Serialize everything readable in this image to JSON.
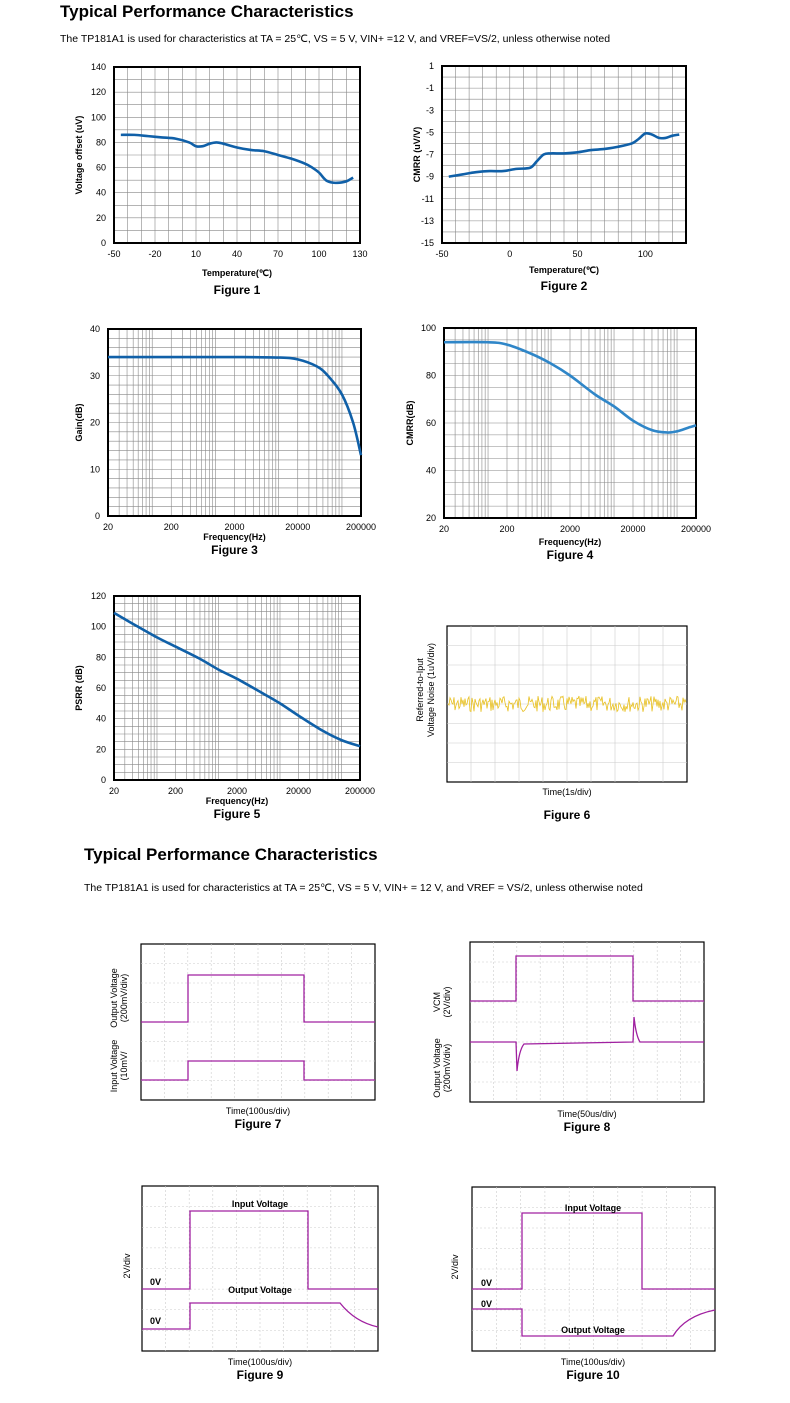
{
  "page": {
    "section1_title": "Typical Performance Characteristics",
    "section1_note": "The TP181A1 is used for characteristics at TA = 25℃, VS = 5 V, VIN+ =12 V, and VREF=VS/2, unless otherwise noted",
    "section2_title": "Typical Performance Characteristics",
    "section2_note": "The TP181A1 is used for characteristics at TA = 25℃, VS = 5 V, VIN+ = 12 V, and VREF = VS/2, unless otherwise noted"
  },
  "colors": {
    "curve": "#1060a8",
    "curve_light": "#2f86c8",
    "noise": "#e8c020",
    "scope_trace": "#a020a0",
    "grid": "#888888"
  },
  "chart_data": [
    {
      "type": "line",
      "figure": "Figure 1",
      "xlabel": "Temperature(℃)",
      "ylabel": "Voltage offset (uV)",
      "xlim": [
        -50,
        130
      ],
      "ylim": [
        0,
        140
      ],
      "xticks": [
        "-50",
        "-20",
        "10",
        "40",
        "70",
        "100",
        "130"
      ],
      "yticks": [
        "0",
        "20",
        "40",
        "60",
        "80",
        "100",
        "120",
        "140"
      ],
      "series": [
        {
          "x": [
            -45,
            -35,
            -25,
            -15,
            -5,
            5,
            10,
            15,
            20,
            25,
            30,
            40,
            50,
            60,
            70,
            80,
            90,
            95,
            100,
            105,
            110,
            115,
            120,
            125
          ],
          "y": [
            86,
            86,
            85,
            84,
            83,
            80,
            77,
            77,
            79,
            80,
            79,
            76,
            74,
            73,
            70,
            67,
            63,
            60,
            56,
            50,
            48,
            48,
            49,
            52
          ]
        }
      ]
    },
    {
      "type": "line",
      "figure": "Figure 2",
      "xlabel": "Temperature(℃)",
      "ylabel": "CMRR (uV/V)",
      "xlim": [
        -50,
        130
      ],
      "ylim": [
        -15,
        1
      ],
      "xticks": [
        "-50",
        "0",
        "50",
        "100"
      ],
      "yticks": [
        "1",
        "-1",
        "-3",
        "-5",
        "-7",
        "-9",
        "-11",
        "-13",
        "-15"
      ],
      "series": [
        {
          "x": [
            -45,
            -35,
            -25,
            -15,
            -5,
            5,
            15,
            20,
            25,
            30,
            40,
            50,
            60,
            70,
            80,
            90,
            95,
            100,
            105,
            110,
            115,
            120,
            125
          ],
          "y": [
            -9,
            -8.8,
            -8.6,
            -8.5,
            -8.5,
            -8.3,
            -8.2,
            -7.6,
            -7,
            -6.9,
            -6.9,
            -6.8,
            -6.6,
            -6.5,
            -6.3,
            -6,
            -5.6,
            -5.1,
            -5.2,
            -5.5,
            -5.5,
            -5.3,
            -5.2
          ]
        }
      ]
    },
    {
      "type": "line",
      "figure": "Figure 3",
      "xlabel": "Frequency(Hz)",
      "ylabel": "Gain(dB)",
      "xscale": "log",
      "xlim": [
        20,
        200000
      ],
      "ylim": [
        0,
        40
      ],
      "xticks": [
        "20",
        "200",
        "2000",
        "20000",
        "200000"
      ],
      "yticks": [
        "0",
        "10",
        "20",
        "30",
        "40"
      ],
      "series": [
        {
          "x": [
            20,
            200,
            2000,
            10000,
            20000,
            40000,
            60000,
            100000,
            150000,
            200000
          ],
          "y": [
            34,
            34,
            34,
            33.9,
            33.5,
            32,
            30,
            26,
            20,
            13
          ]
        }
      ]
    },
    {
      "type": "line",
      "figure": "Figure 4",
      "xlabel": "Frequency(Hz)",
      "ylabel": "CMRR(dB)",
      "xscale": "log",
      "xlim": [
        20,
        200000
      ],
      "ylim": [
        20,
        100
      ],
      "xticks": [
        "20",
        "200",
        "2000",
        "20000",
        "200000"
      ],
      "yticks": [
        "20",
        "40",
        "60",
        "80",
        "100"
      ],
      "series": [
        {
          "x": [
            20,
            100,
            200,
            500,
            1000,
            2000,
            5000,
            10000,
            20000,
            40000,
            70000,
            100000,
            150000,
            200000
          ],
          "y": [
            94,
            94,
            93,
            89,
            85,
            80,
            72,
            67,
            61,
            57,
            56,
            56.5,
            58,
            59
          ]
        }
      ]
    },
    {
      "type": "line",
      "figure": "Figure 5",
      "xlabel": "Frequency(Hz)",
      "ylabel": "PSRR (dB)",
      "xscale": "log",
      "xlim": [
        20,
        200000
      ],
      "ylim": [
        0,
        120
      ],
      "xticks": [
        "20",
        "200",
        "2000",
        "20000",
        "200000"
      ],
      "yticks": [
        "0",
        "20",
        "40",
        "60",
        "80",
        "100",
        "120"
      ],
      "series": [
        {
          "x": [
            20,
            40,
            100,
            200,
            500,
            1000,
            2000,
            5000,
            10000,
            20000,
            50000,
            100000,
            200000
          ],
          "y": [
            109,
            102,
            93,
            87,
            79,
            72,
            66,
            57,
            50,
            42,
            32,
            26,
            22
          ]
        }
      ]
    },
    {
      "type": "line",
      "figure": "Figure 6",
      "xlabel": "Time(1s/div)",
      "ylabel_lines": [
        "Referred-to-Iput",
        "Voltage Noise (1uV/div)"
      ]
    }
  ],
  "scopes": [
    {
      "figure": "Figure 7",
      "xlabel": "Time(100us/div)",
      "ylabel_top": [
        "Output Voltage",
        "(200mV/div)"
      ],
      "ylabel_bottom": [
        "Input Voltage",
        "(10mV/"
      ]
    },
    {
      "figure": "Figure 8",
      "xlabel": "Time(50us/div)",
      "ylabel_top": [
        "VCM",
        "(2V/div)"
      ],
      "ylabel_bottom": [
        "Output Voltage",
        "(200mV/div)"
      ]
    },
    {
      "figure": "Figure 9",
      "xlabel": "Time(100us/div)",
      "ylabel": "2V/div",
      "label_input": "Input Voltage",
      "label_output": "Output Voltage",
      "zero_labels": [
        "0V",
        "0V"
      ]
    },
    {
      "figure": "Figure 10",
      "xlabel": "Time(100us/div)",
      "ylabel": "2V/div",
      "label_input": "Input Voltage",
      "label_output": "Output Voltage",
      "zero_labels": [
        "0V",
        "0V"
      ]
    }
  ]
}
